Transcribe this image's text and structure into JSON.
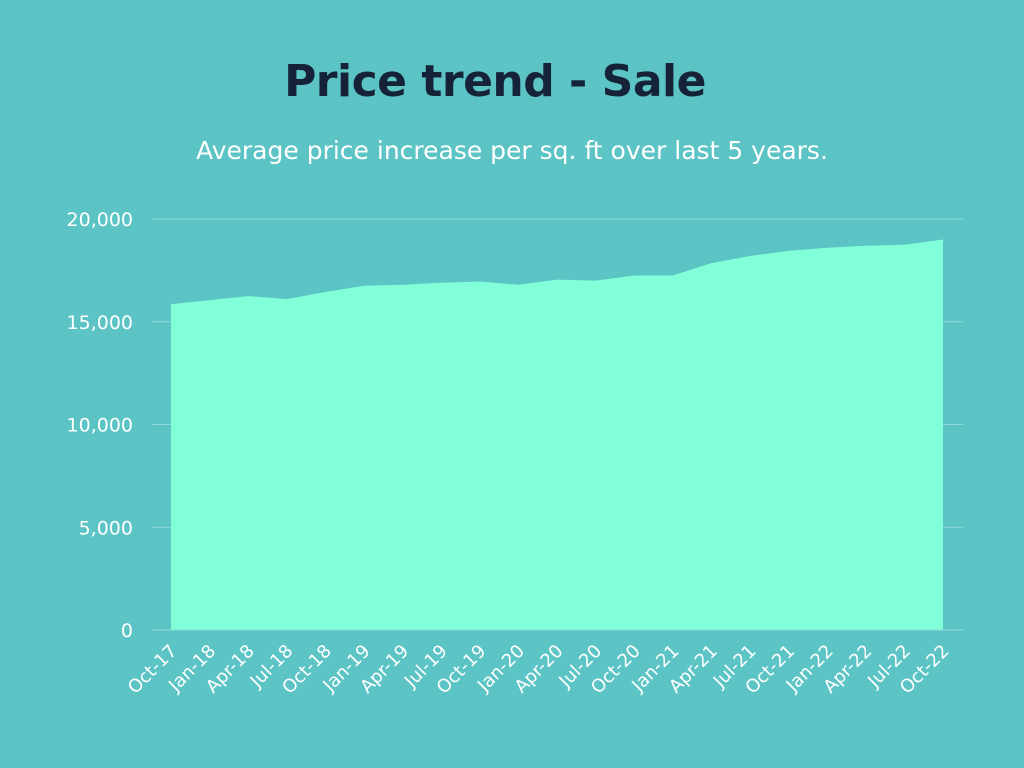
{
  "colors": {
    "background": "#5cc4c5",
    "area_fill": "#80ffd8",
    "title": "#152238",
    "text": "#ffffff",
    "grid": "#8fdadb"
  },
  "chart_data": {
    "type": "area",
    "title": "Price trend - Sale",
    "subtitle": "Average price increase per sq. ft over last 5 years.",
    "xlabel": "",
    "ylabel": "",
    "ylim": [
      0,
      20000
    ],
    "y_ticks": [
      "0",
      "5,000",
      "10,000",
      "15,000",
      "20,000"
    ],
    "grid": true,
    "legend": "none",
    "categories": [
      "Oct-17",
      "Jan-18",
      "Apr-18",
      "Jul-18",
      "Oct-18",
      "Jan-19",
      "Apr-19",
      "Jul-19",
      "Oct-19",
      "Jan-20",
      "Apr-20",
      "Jul-20",
      "Oct-20",
      "Jan-21",
      "Apr-21",
      "Jul-21",
      "Oct-21",
      "Jan-22",
      "Apr-22",
      "Jul-22",
      "Oct-22"
    ],
    "values": [
      15850,
      16050,
      16250,
      16100,
      16450,
      16750,
      16800,
      16900,
      16950,
      16800,
      17050,
      17000,
      17250,
      17250,
      17850,
      18200,
      18450,
      18600,
      18700,
      18750,
      19000
    ]
  }
}
